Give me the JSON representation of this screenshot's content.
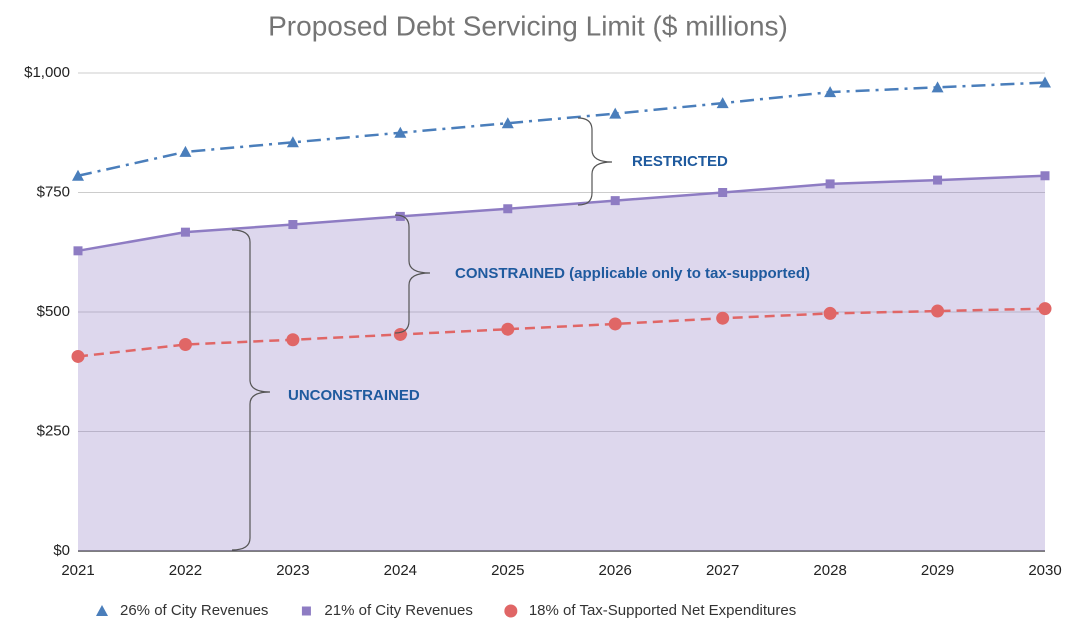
{
  "chart_data": {
    "type": "line",
    "title": "Proposed Debt Servicing Limit ($ millions)",
    "categories": [
      "2021",
      "2022",
      "2023",
      "2024",
      "2025",
      "2026",
      "2027",
      "2028",
      "2029",
      "2030"
    ],
    "series": [
      {
        "name": "26% of City Revenues",
        "color": "#4a7ebb",
        "marker": "triangle",
        "dash": "dashdot",
        "values": [
          785,
          835,
          855,
          875,
          895,
          915,
          937,
          960,
          970,
          980
        ]
      },
      {
        "name": "21% of City Revenues",
        "color": "#8e7cc3",
        "marker": "square",
        "dash": "solid",
        "area": true,
        "values": [
          628,
          667,
          683,
          700,
          716,
          733,
          750,
          768,
          776,
          785
        ]
      },
      {
        "name": "18% of Tax-Supported Net Expenditures",
        "color": "#e06666",
        "marker": "circle",
        "dash": "dashed",
        "values": [
          407,
          432,
          442,
          453,
          464,
          475,
          487,
          497,
          502,
          507
        ]
      }
    ],
    "ylim": [
      0,
      1000
    ],
    "yticks": [
      {
        "value": 0,
        "label": "$0"
      },
      {
        "value": 250,
        "label": "$250"
      },
      {
        "value": 500,
        "label": "$500"
      },
      {
        "value": 750,
        "label": "$750"
      },
      {
        "value": 1000,
        "label": "$1,000"
      }
    ],
    "grid": true,
    "legend": "bottom",
    "annotations": [
      "RESTRICTED",
      "CONSTRAINED (applicable only to tax-supported)",
      "UNCONSTRAINED"
    ]
  }
}
